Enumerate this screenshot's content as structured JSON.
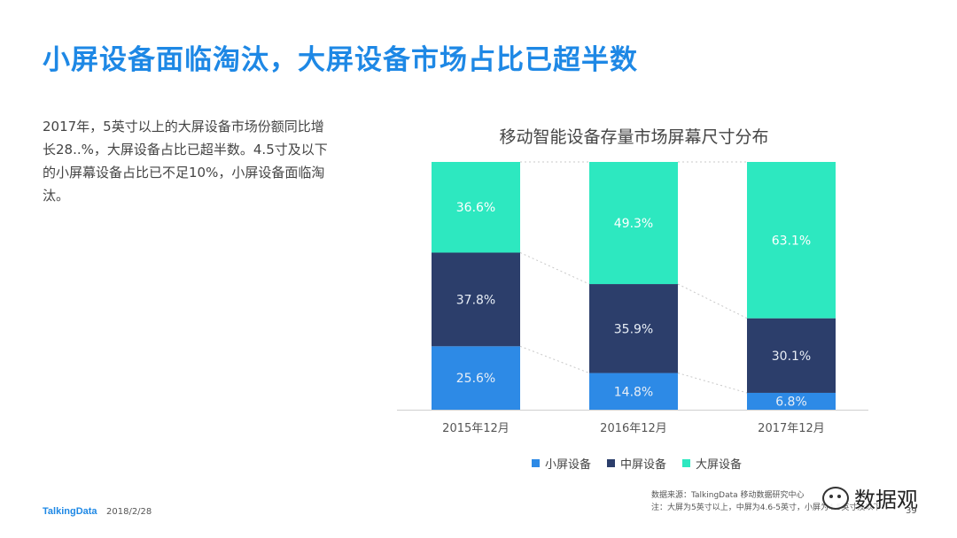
{
  "slide": {
    "title": "小屏设备面临淘汰，大屏设备市场占比已超半数",
    "body": "2017年，5英寸以上的大屏设备市场份额同比增长28..%，大屏设备占比已超半数。4.5寸及以下的小屏幕设备占比已不足10%，小屏设备面临淘汰。"
  },
  "footer": {
    "logo": "TalkingData",
    "date": "2018/2/28",
    "source_line1": "数据来源：TalkingData 移动数据研究中心",
    "source_line2": "注：大屏为5英寸以上，中屏为4.6-5英寸，小屏为4.5英寸及以下",
    "page": "39",
    "watermark": "数据观"
  },
  "colors": {
    "small": "#2d8ae6",
    "medium": "#2c3e6b",
    "large": "#2de8c0",
    "title": "#1e88e5"
  },
  "chart_data": {
    "type": "bar",
    "stacked": true,
    "percent": true,
    "title": "移动智能设备存量市场屏幕尺寸分布",
    "categories": [
      "2015年12月",
      "2016年12月",
      "2017年12月"
    ],
    "series": [
      {
        "name": "小屏设备",
        "values": [
          25.6,
          14.8,
          6.8
        ],
        "labels": [
          "25.6%",
          "14.8%",
          "6.8%"
        ],
        "color": "#2d8ae6"
      },
      {
        "name": "中屏设备",
        "values": [
          37.8,
          35.9,
          30.1
        ],
        "labels": [
          "37.8%",
          "35.9%",
          "30.1%"
        ],
        "color": "#2c3e6b"
      },
      {
        "name": "大屏设备",
        "values": [
          36.6,
          49.3,
          63.1
        ],
        "labels": [
          "36.6%",
          "49.3%",
          "63.1%"
        ],
        "color": "#2de8c0"
      }
    ],
    "ylim": [
      0,
      100
    ],
    "xlabel": "",
    "ylabel": "",
    "legend_position": "bottom",
    "connector_lines": "dashed"
  }
}
